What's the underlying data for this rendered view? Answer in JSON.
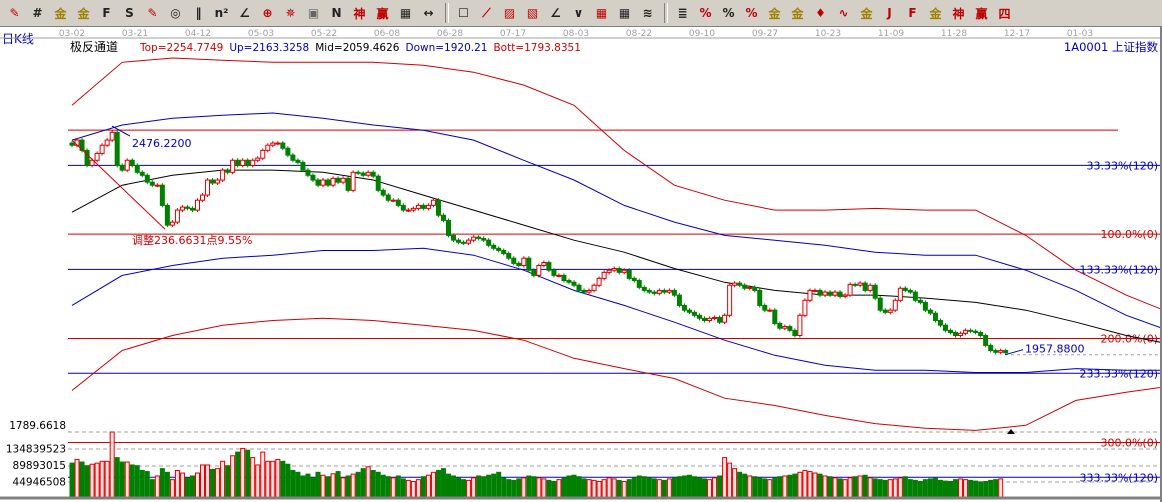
{
  "toolbar": {
    "groups": [
      [
        {
          "icon": "pen-icon",
          "glyph": "✎",
          "color": "#c00000"
        },
        {
          "icon": "parallel-lines-icon",
          "glyph": "#",
          "color": "#222"
        },
        {
          "icon": "gold-ratio-icon",
          "glyph": "金",
          "color": "#a08000"
        },
        {
          "icon": "gold-ratio-2-icon",
          "glyph": "金",
          "color": "#a08000"
        },
        {
          "icon": "fib-f-icon",
          "glyph": "F",
          "color": "#222"
        },
        {
          "icon": "spiral-icon",
          "glyph": "S",
          "color": "#222"
        },
        {
          "icon": "measure-pen-icon",
          "glyph": "✎",
          "color": "#c00000"
        },
        {
          "icon": "cycle-icon",
          "glyph": "◎",
          "color": "#222"
        },
        {
          "icon": "period-lines-icon",
          "glyph": "‖",
          "color": "#222"
        },
        {
          "icon": "square-n-icon",
          "glyph": "n²",
          "color": "#222"
        },
        {
          "icon": "angle-icon",
          "glyph": "∠",
          "color": "#222"
        },
        {
          "icon": "circle-cross-icon",
          "glyph": "⊕",
          "color": "#c00000"
        },
        {
          "icon": "compass-icon",
          "glyph": "✵",
          "color": "#c00000"
        },
        {
          "icon": "square-grid-icon",
          "glyph": "▣",
          "color": "#666"
        },
        {
          "icon": "wave-icon",
          "glyph": "N",
          "color": "#222"
        },
        {
          "icon": "god-lines-icon",
          "glyph": "神",
          "color": "#c00000"
        },
        {
          "icon": "win-lines-icon",
          "glyph": "赢",
          "color": "#c00000"
        },
        {
          "icon": "ruler-icon",
          "glyph": "▦",
          "color": "#222"
        },
        {
          "icon": "width-arrows-icon",
          "glyph": "↔",
          "color": "#222"
        }
      ],
      [
        {
          "icon": "box-icon",
          "glyph": "☐",
          "color": "#222"
        },
        {
          "icon": "fan-lines-icon",
          "glyph": "⟋",
          "color": "#c00000"
        },
        {
          "icon": "gann-fan-icon",
          "glyph": "▨",
          "color": "#c00000"
        },
        {
          "icon": "gann-box-icon",
          "glyph": "▧",
          "color": "#c00000"
        },
        {
          "icon": "speed-lines-icon",
          "glyph": "∠",
          "color": "#222"
        },
        {
          "icon": "zigzag-icon",
          "glyph": "∨",
          "color": "#222"
        },
        {
          "icon": "grid-icon",
          "glyph": "▦",
          "color": "#c00000"
        },
        {
          "icon": "grid-2-icon",
          "glyph": "▦",
          "color": "#222"
        },
        {
          "icon": "multi-lines-icon",
          "glyph": "≋",
          "color": "#222"
        }
      ],
      [
        {
          "icon": "bars-icon",
          "glyph": "≣",
          "color": "#222"
        },
        {
          "icon": "percent-angle-icon",
          "glyph": "%",
          "color": "#c00000"
        },
        {
          "icon": "percent-icon",
          "glyph": "%",
          "color": "#222"
        },
        {
          "icon": "percent-lines-icon",
          "glyph": "%",
          "color": "#c00000"
        },
        {
          "icon": "gold-circle-icon",
          "glyph": "金",
          "color": "#a08000"
        },
        {
          "icon": "gold-lines-icon",
          "glyph": "金",
          "color": "#a08000"
        },
        {
          "icon": "rocket-icon",
          "glyph": "♦",
          "color": "#c00000"
        },
        {
          "icon": "sine-icon",
          "glyph": "∿",
          "color": "#c00000"
        },
        {
          "icon": "gold-level-icon",
          "glyph": "金",
          "color": "#a08000"
        },
        {
          "icon": "j-lines-icon",
          "glyph": "J",
          "color": "#c00000"
        },
        {
          "icon": "f-lines-icon",
          "glyph": "F",
          "color": "#c00000"
        },
        {
          "icon": "gold-angle-icon",
          "glyph": "金",
          "color": "#a08000"
        },
        {
          "icon": "god-angle-icon",
          "glyph": "神",
          "color": "#c00000"
        },
        {
          "icon": "win-angle-icon",
          "glyph": "赢",
          "color": "#c00000"
        },
        {
          "icon": "four-angle-icon",
          "glyph": "四",
          "color": "#c00000"
        }
      ]
    ]
  },
  "header": {
    "period": "日K线",
    "indicator": "极反通道",
    "values": [
      {
        "text": "Top=2254.7749",
        "color": "#d00000"
      },
      {
        "text": "Up=2163.3258",
        "color": "#0000c0"
      },
      {
        "text": "Mid=2059.4626",
        "color": "#000000"
      },
      {
        "text": "Down=1920.21",
        "color": "#0000c0"
      },
      {
        "text": "Bott=1793.8351",
        "color": "#d00000"
      }
    ],
    "symbol": "1A0001  上证指数"
  },
  "chart_data": {
    "type": "candlestick",
    "x_tick_labels": [
      "03-02",
      "03-21",
      "04-12",
      "05-03",
      "05-22",
      "06-08",
      "06-28",
      "07-17",
      "08-03",
      "08-22",
      "09-10",
      "09-27",
      "10-23",
      "11-09",
      "11-28",
      "12-17",
      "01-03"
    ],
    "ylim": [
      1789.6618,
      2686
    ],
    "y_bottom_label": "1789.6618",
    "close": [
      2441,
      2453,
      2429,
      2394,
      2406,
      2422,
      2441,
      2453,
      2471,
      2394,
      2383,
      2406,
      2394,
      2378,
      2371,
      2355,
      2348,
      2348,
      2301,
      2255,
      2262,
      2290,
      2297,
      2294,
      2290,
      2313,
      2325,
      2360,
      2353,
      2360,
      2383,
      2378,
      2406,
      2394,
      2406,
      2394,
      2406,
      2411,
      2429,
      2441,
      2446,
      2446,
      2434,
      2418,
      2406,
      2401,
      2383,
      2371,
      2360,
      2348,
      2360,
      2348,
      2364,
      2355,
      2364,
      2336,
      2378,
      2376,
      2371,
      2378,
      2369,
      2336,
      2325,
      2313,
      2313,
      2301,
      2290,
      2290,
      2294,
      2301,
      2294,
      2301,
      2313,
      2278,
      2266,
      2231,
      2220,
      2215,
      2213,
      2220,
      2227,
      2224,
      2220,
      2208,
      2201,
      2196,
      2189,
      2178,
      2166,
      2161,
      2178,
      2150,
      2138,
      2161,
      2168,
      2150,
      2138,
      2138,
      2126,
      2122,
      2115,
      2103,
      2099,
      2103,
      2115,
      2131,
      2145,
      2150,
      2154,
      2145,
      2150,
      2131,
      2126,
      2110,
      2103,
      2099,
      2096,
      2103,
      2099,
      2103,
      2092,
      2068,
      2057,
      2052,
      2045,
      2038,
      2033,
      2038,
      2040,
      2029,
      2045,
      2115,
      2120,
      2115,
      2108,
      2110,
      2103,
      2068,
      2057,
      2057,
      2026,
      2015,
      2019,
      2010,
      1998,
      2045,
      2080,
      2103,
      2103,
      2092,
      2099,
      2092,
      2099,
      2089,
      2092,
      2117,
      2115,
      2120,
      2103,
      2115,
      2085,
      2057,
      2052,
      2057,
      2080,
      2108,
      2103,
      2099,
      2080,
      2075,
      2057,
      2050,
      2033,
      2022,
      2010,
      2005,
      1998,
      2003,
      2010,
      2008,
      2005,
      1998,
      1975,
      1963,
      1959,
      1963,
      1958
    ],
    "volume_millions": [
      95,
      105,
      98,
      88,
      92,
      95,
      100,
      100,
      200,
      110,
      98,
      98,
      90,
      88,
      75,
      72,
      50,
      60,
      80,
      70,
      50,
      75,
      68,
      55,
      60,
      68,
      90,
      90,
      78,
      80,
      100,
      88,
      115,
      125,
      135,
      130,
      110,
      90,
      125,
      100,
      100,
      105,
      100,
      92,
      75,
      70,
      60,
      65,
      55,
      70,
      62,
      58,
      66,
      72,
      55,
      60,
      65,
      70,
      80,
      85,
      75,
      70,
      62,
      58,
      55,
      60,
      52,
      48,
      45,
      50,
      58,
      62,
      70,
      75,
      80,
      65,
      60,
      55,
      50,
      48,
      55,
      60,
      58,
      62,
      65,
      70,
      55,
      50,
      48,
      52,
      55,
      60,
      58,
      55,
      52,
      48,
      45,
      50,
      55,
      60,
      62,
      58,
      52,
      50,
      48,
      45,
      50,
      55,
      52,
      48,
      45,
      50,
      55,
      60,
      58,
      55,
      52,
      50,
      48,
      52,
      55,
      58,
      60,
      62,
      58,
      55,
      52,
      50,
      55,
      60,
      110,
      95,
      80,
      70,
      65,
      60,
      58,
      55,
      52,
      50,
      55,
      58,
      60,
      62,
      65,
      70,
      75,
      72,
      68,
      65,
      60,
      58,
      55,
      52,
      50,
      55,
      58,
      60,
      62,
      55,
      52,
      50,
      48,
      50,
      52,
      55,
      58,
      50,
      48,
      45,
      50,
      52,
      55,
      48,
      46,
      45,
      50,
      52,
      50,
      48,
      46,
      44,
      45,
      48,
      50,
      52
    ],
    "volume_tick_labels": [
      "134839523",
      "89893015",
      "44946508"
    ],
    "volume_ticks": [
      134839523,
      89893015,
      44946508
    ],
    "band_step_bars": 10,
    "bands": [
      {
        "name": "Top",
        "color": "#d00000",
        "values": [
          2534,
          2634,
          2644,
          2639,
          2634,
          2634,
          2634,
          2627,
          2611,
          2581,
          2534,
          2429,
          2348,
          2313,
          2290,
          2290,
          2294,
          2290,
          2290,
          2231,
          2150,
          2092,
          2045
        ]
      },
      {
        "name": "Up",
        "color": "#0000c0",
        "values": [
          2453,
          2488,
          2504,
          2511,
          2516,
          2504,
          2488,
          2476,
          2453,
          2406,
          2360,
          2301,
          2262,
          2231,
          2220,
          2208,
          2192,
          2185,
          2185,
          2150,
          2103,
          2045,
          2003
        ]
      },
      {
        "name": "Mid",
        "color": "#000000",
        "values": [
          2285,
          2348,
          2371,
          2383,
          2383,
          2378,
          2360,
          2325,
          2290,
          2255,
          2220,
          2192,
          2154,
          2122,
          2103,
          2092,
          2092,
          2085,
          2075,
          2057,
          2029,
          1998,
          1975
        ]
      },
      {
        "name": "Down",
        "color": "#0000c0",
        "values": [
          2068,
          2138,
          2161,
          2178,
          2185,
          2196,
          2196,
          2201,
          2185,
          2150,
          2103,
          2068,
          2029,
          1987,
          1952,
          1929,
          1917,
          1917,
          1912,
          1912,
          1921,
          1917,
          1917
        ]
      },
      {
        "name": "Bott",
        "color": "#d00000",
        "values": [
          1870,
          1963,
          1998,
          2022,
          2033,
          2038,
          2033,
          2022,
          2010,
          1987,
          1945,
          1921,
          1898,
          1852,
          1835,
          1812,
          1793,
          1782,
          1777,
          1789,
          1847,
          1866,
          1882
        ]
      }
    ],
    "levels": [
      {
        "price": 2476.22,
        "label": "",
        "color": "#d00000"
      },
      {
        "price": 2394,
        "label": "33.33%(120)",
        "color": "#0000c0"
      },
      {
        "price": 2234,
        "label": "100.0%(0)",
        "color": "#d00000"
      },
      {
        "price": 2152,
        "label": "133.33%(120)",
        "color": "#0000c0"
      },
      {
        "price": 1991,
        "label": "200.0%(0)",
        "color": "#d00000"
      },
      {
        "price": 1910,
        "label": "233.33%(120)",
        "color": "#0000c0"
      },
      {
        "price": 1749,
        "label": "300.0%(0)",
        "color": "#d00000"
      },
      {
        "price": 1668,
        "label": "333.33%(120)",
        "color": "#0000c0"
      }
    ],
    "annotations": {
      "high_label": "2476.2200",
      "retrace_label": "调整236.6631点9.55%",
      "last_label": "1957.8800"
    },
    "colors": {
      "up": "#e00000",
      "down": "#008000",
      "grid": "#a0a0a0"
    }
  }
}
